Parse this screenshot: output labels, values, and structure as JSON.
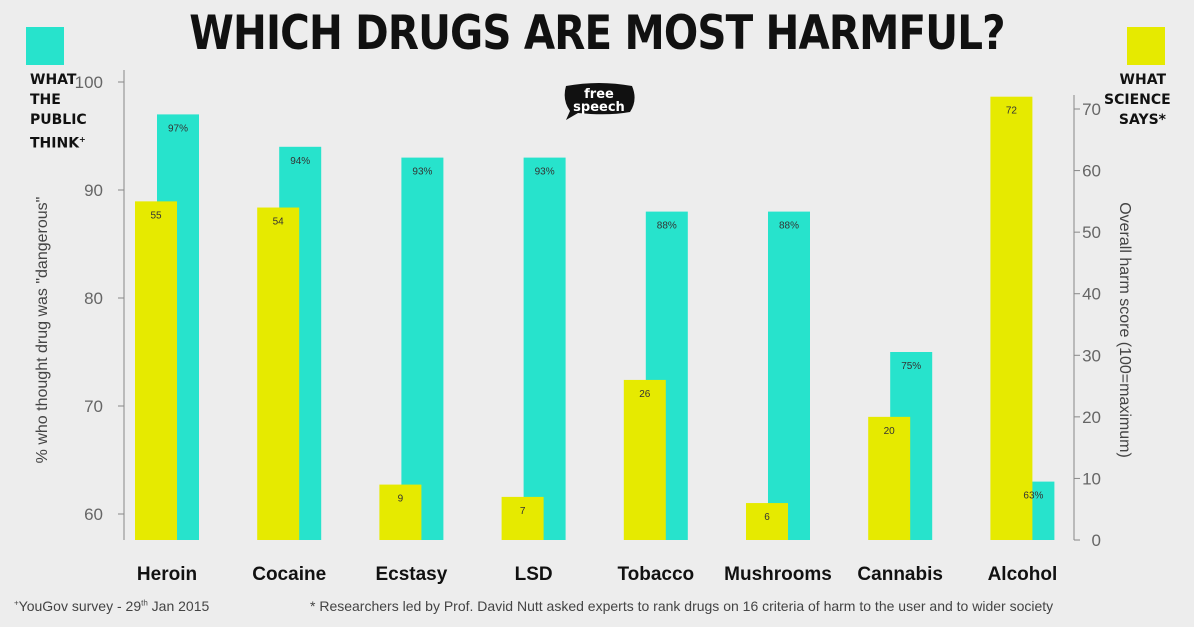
{
  "title": "WHICH DRUGS ARE MOST HARMFUL?",
  "legend": {
    "public": {
      "lines": [
        "WHAT",
        "THE",
        "PUBLIC",
        "THINK"
      ],
      "marker": "+",
      "color": "#27e3cc"
    },
    "science": {
      "lines": [
        "WHAT",
        "SCIENCE",
        "SAYS*"
      ],
      "color": "#e6ea00"
    }
  },
  "logo": {
    "line1": "free",
    "line2": "speech"
  },
  "chart_data": {
    "type": "bar",
    "categories": [
      "Heroin",
      "Cocaine",
      "Ecstasy",
      "LSD",
      "Tobacco",
      "Mushrooms",
      "Cannabis",
      "Alcohol"
    ],
    "series": [
      {
        "name": "WHAT SCIENCE SAYS*",
        "axis": "right",
        "color": "#e6ea00",
        "values": [
          55,
          54,
          9,
          7,
          26,
          6,
          20,
          72
        ],
        "labels": [
          "55",
          "54",
          "9",
          "7",
          "26",
          "6",
          "20",
          "72"
        ]
      },
      {
        "name": "WHAT THE PUBLIC THINK+",
        "axis": "left",
        "color": "#27e3cc",
        "values": [
          97,
          94,
          93,
          93,
          88,
          88,
          75,
          63
        ],
        "labels": [
          "97%",
          "94%",
          "93%",
          "93%",
          "88%",
          "88%",
          "75%",
          "63%"
        ]
      }
    ],
    "y_left": {
      "label": "% who thought drug was \"dangerous\"",
      "ticks": [
        "100",
        "90",
        "80",
        "70",
        "60"
      ],
      "tick_values": [
        100,
        90,
        80,
        70,
        60
      ],
      "range": [
        58,
        100
      ]
    },
    "y_right": {
      "label": "Overall harm score (100=maximum)",
      "ticks": [
        "70",
        "60",
        "50",
        "40",
        "30",
        "20",
        "10",
        "0"
      ],
      "tick_values": [
        70,
        60,
        50,
        40,
        30,
        20,
        10,
        0
      ],
      "range": [
        0,
        72
      ]
    },
    "grid": false
  },
  "footnotes": {
    "left_marker": "+",
    "left": "YouGov survey - 29",
    "left_sup": "th",
    "left_tail": " Jan 2015",
    "right": "* Researchers led by Prof. David Nutt asked experts to rank drugs on 16 criteria of harm to the user and to wider society"
  }
}
